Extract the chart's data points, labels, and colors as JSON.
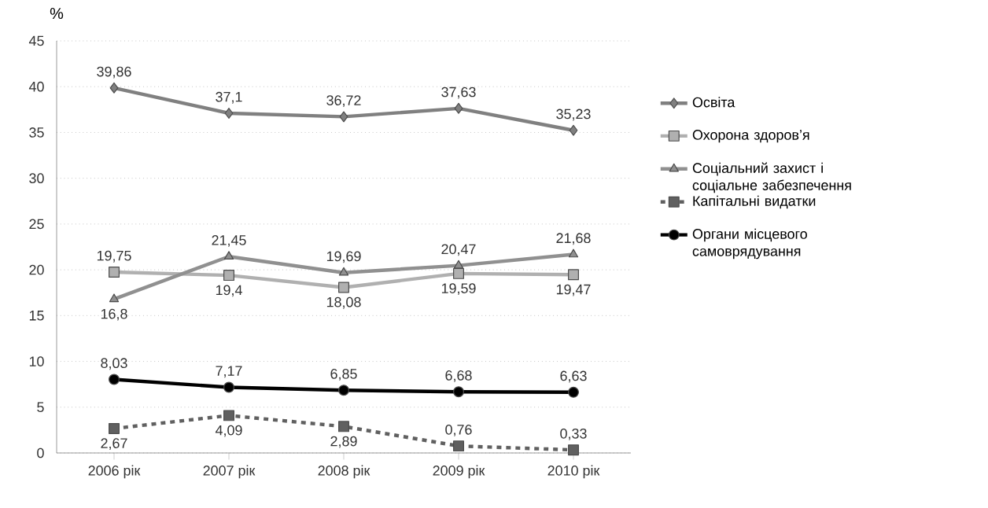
{
  "chart_data": {
    "type": "line",
    "ylabel": "%",
    "categories": [
      "2006 рік",
      "2007 рік",
      "2008 рік",
      "2009 рік",
      "2010 рік"
    ],
    "ylim": [
      0,
      45
    ],
    "yticks": [
      0,
      5,
      10,
      15,
      20,
      25,
      30,
      35,
      40,
      45
    ],
    "grid": "y",
    "legend": "right",
    "series": [
      {
        "name": "Освіта",
        "color": "#808080",
        "marker": "diamond",
        "line_style": "solid",
        "values": [
          39.86,
          37.1,
          36.72,
          37.63,
          35.23
        ],
        "value_labels": [
          "39,86",
          "37,1",
          "36,72",
          "37,63",
          "35,23"
        ]
      },
      {
        "name": "Охорона здоров’я",
        "color": "#b0b0b0",
        "marker": "square",
        "line_style": "solid",
        "values": [
          19.75,
          19.4,
          18.08,
          19.59,
          19.47
        ],
        "value_labels": [
          "19,75",
          "19,4",
          "18,08",
          "19,59",
          "19,47"
        ]
      },
      {
        "name": "Соціальний захист і соціальне  забезпечення",
        "color": "#909090",
        "marker": "triangle",
        "line_style": "solid",
        "values": [
          16.8,
          21.45,
          19.69,
          20.47,
          21.68
        ],
        "value_labels": [
          "16,8",
          "21,45",
          "19,69",
          "20,47",
          "21,68"
        ]
      },
      {
        "name": "Капітальні видатки",
        "color": "#606060",
        "marker": "square",
        "line_style": "dashed",
        "values": [
          2.67,
          4.09,
          2.89,
          0.76,
          0.33
        ],
        "value_labels": [
          "2,67",
          "4,09",
          "2,89",
          "0,76",
          "0,33"
        ]
      },
      {
        "name": "Органи місцевого самоврядування",
        "color": "#000000",
        "marker": "circle",
        "line_style": "solid",
        "values": [
          8.03,
          7.17,
          6.85,
          6.68,
          6.63
        ],
        "value_labels": [
          "8,03",
          "7,17",
          "6,85",
          "6,68",
          "6,63"
        ]
      }
    ]
  }
}
